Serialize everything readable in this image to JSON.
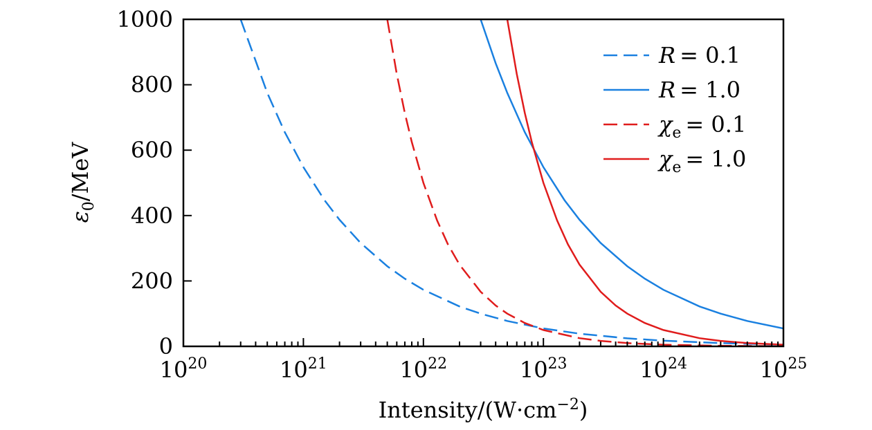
{
  "chart_data": {
    "type": "line",
    "title": "",
    "xlabel": "Intensity/(W·cm",
    "xlabel_exponent": "−2",
    "xlabel_close": ")",
    "ylabel": "ε",
    "ylabel_subscript": "0",
    "ylabel_unit": "/MeV",
    "xscale": "log",
    "xlim": [
      1e+20,
      1e+25
    ],
    "ylim": [
      0,
      1000
    ],
    "x_ticks": [
      {
        "base": "10",
        "exp": "20"
      },
      {
        "base": "10",
        "exp": "21"
      },
      {
        "base": "10",
        "exp": "22"
      },
      {
        "base": "10",
        "exp": "23"
      },
      {
        "base": "10",
        "exp": "24"
      },
      {
        "base": "10",
        "exp": "25"
      }
    ],
    "y_ticks": [
      "0",
      "200",
      "400",
      "600",
      "800",
      "1000"
    ],
    "grid": false,
    "legend_position": "top-right",
    "series": [
      {
        "name": "R = 0.1",
        "symbol": "R",
        "subscript": "",
        "value_text": "= 0.1",
        "color": "#1a80e0",
        "style": "dashed",
        "x": [
          3e+20,
          5e+20,
          7e+20,
          1e+21,
          1.5e+21,
          2e+21,
          3e+21,
          5e+21,
          7e+21,
          1e+22,
          2e+22,
          3e+22,
          5e+22,
          1e+23,
          2e+23,
          5e+23,
          1e+24,
          3e+24,
          1e+25
        ],
        "y": [
          1000,
          775,
          655,
          548,
          447,
          387,
          316,
          245,
          207,
          173,
          122,
          100,
          77.5,
          54.8,
          38.7,
          24.5,
          17.3,
          10,
          5.5
        ]
      },
      {
        "name": "R = 1.0",
        "symbol": "R",
        "subscript": "",
        "value_text": "= 1.0",
        "color": "#1a80e0",
        "style": "solid",
        "x": [
          3e+22,
          4e+22,
          5e+22,
          7e+22,
          1e+23,
          1.5e+23,
          2e+23,
          3e+23,
          5e+23,
          7e+23,
          1e+24,
          2e+24,
          3e+24,
          5e+24,
          1e+25
        ],
        "y": [
          1000,
          866,
          775,
          655,
          548,
          447,
          387,
          316,
          245,
          207,
          173,
          122,
          100,
          77.5,
          54.8
        ]
      },
      {
        "name": "χe = 0.1",
        "symbol": "χ",
        "subscript": "e",
        "value_text": "= 0.1",
        "color": "#e01c1c",
        "style": "dashed",
        "x": [
          5e+21,
          6e+21,
          7e+21,
          8e+21,
          1e+22,
          1.3e+22,
          1.6e+22,
          2e+22,
          3e+22,
          4e+22,
          5e+22,
          7e+22,
          1e+23,
          2e+23,
          3e+23,
          5e+23,
          1e+24,
          3e+24,
          1e+25
        ],
        "y": [
          1000,
          833,
          714,
          625,
          500,
          385,
          312,
          250,
          167,
          125,
          100,
          71.4,
          50,
          25,
          16.7,
          10,
          5,
          1.7,
          0.5
        ]
      },
      {
        "name": "χe = 1.0",
        "symbol": "χ",
        "subscript": "e",
        "value_text": "= 1.0",
        "color": "#e01c1c",
        "style": "solid",
        "x": [
          5e+22,
          6e+22,
          7e+22,
          8e+22,
          1e+23,
          1.3e+23,
          1.6e+23,
          2e+23,
          3e+23,
          4e+23,
          5e+23,
          7e+23,
          1e+24,
          2e+24,
          3e+24,
          5e+24,
          1e+25
        ],
        "y": [
          1000,
          833,
          714,
          625,
          500,
          385,
          312,
          250,
          167,
          125,
          100,
          71.4,
          50,
          25,
          16.7,
          10,
          5
        ]
      }
    ]
  }
}
